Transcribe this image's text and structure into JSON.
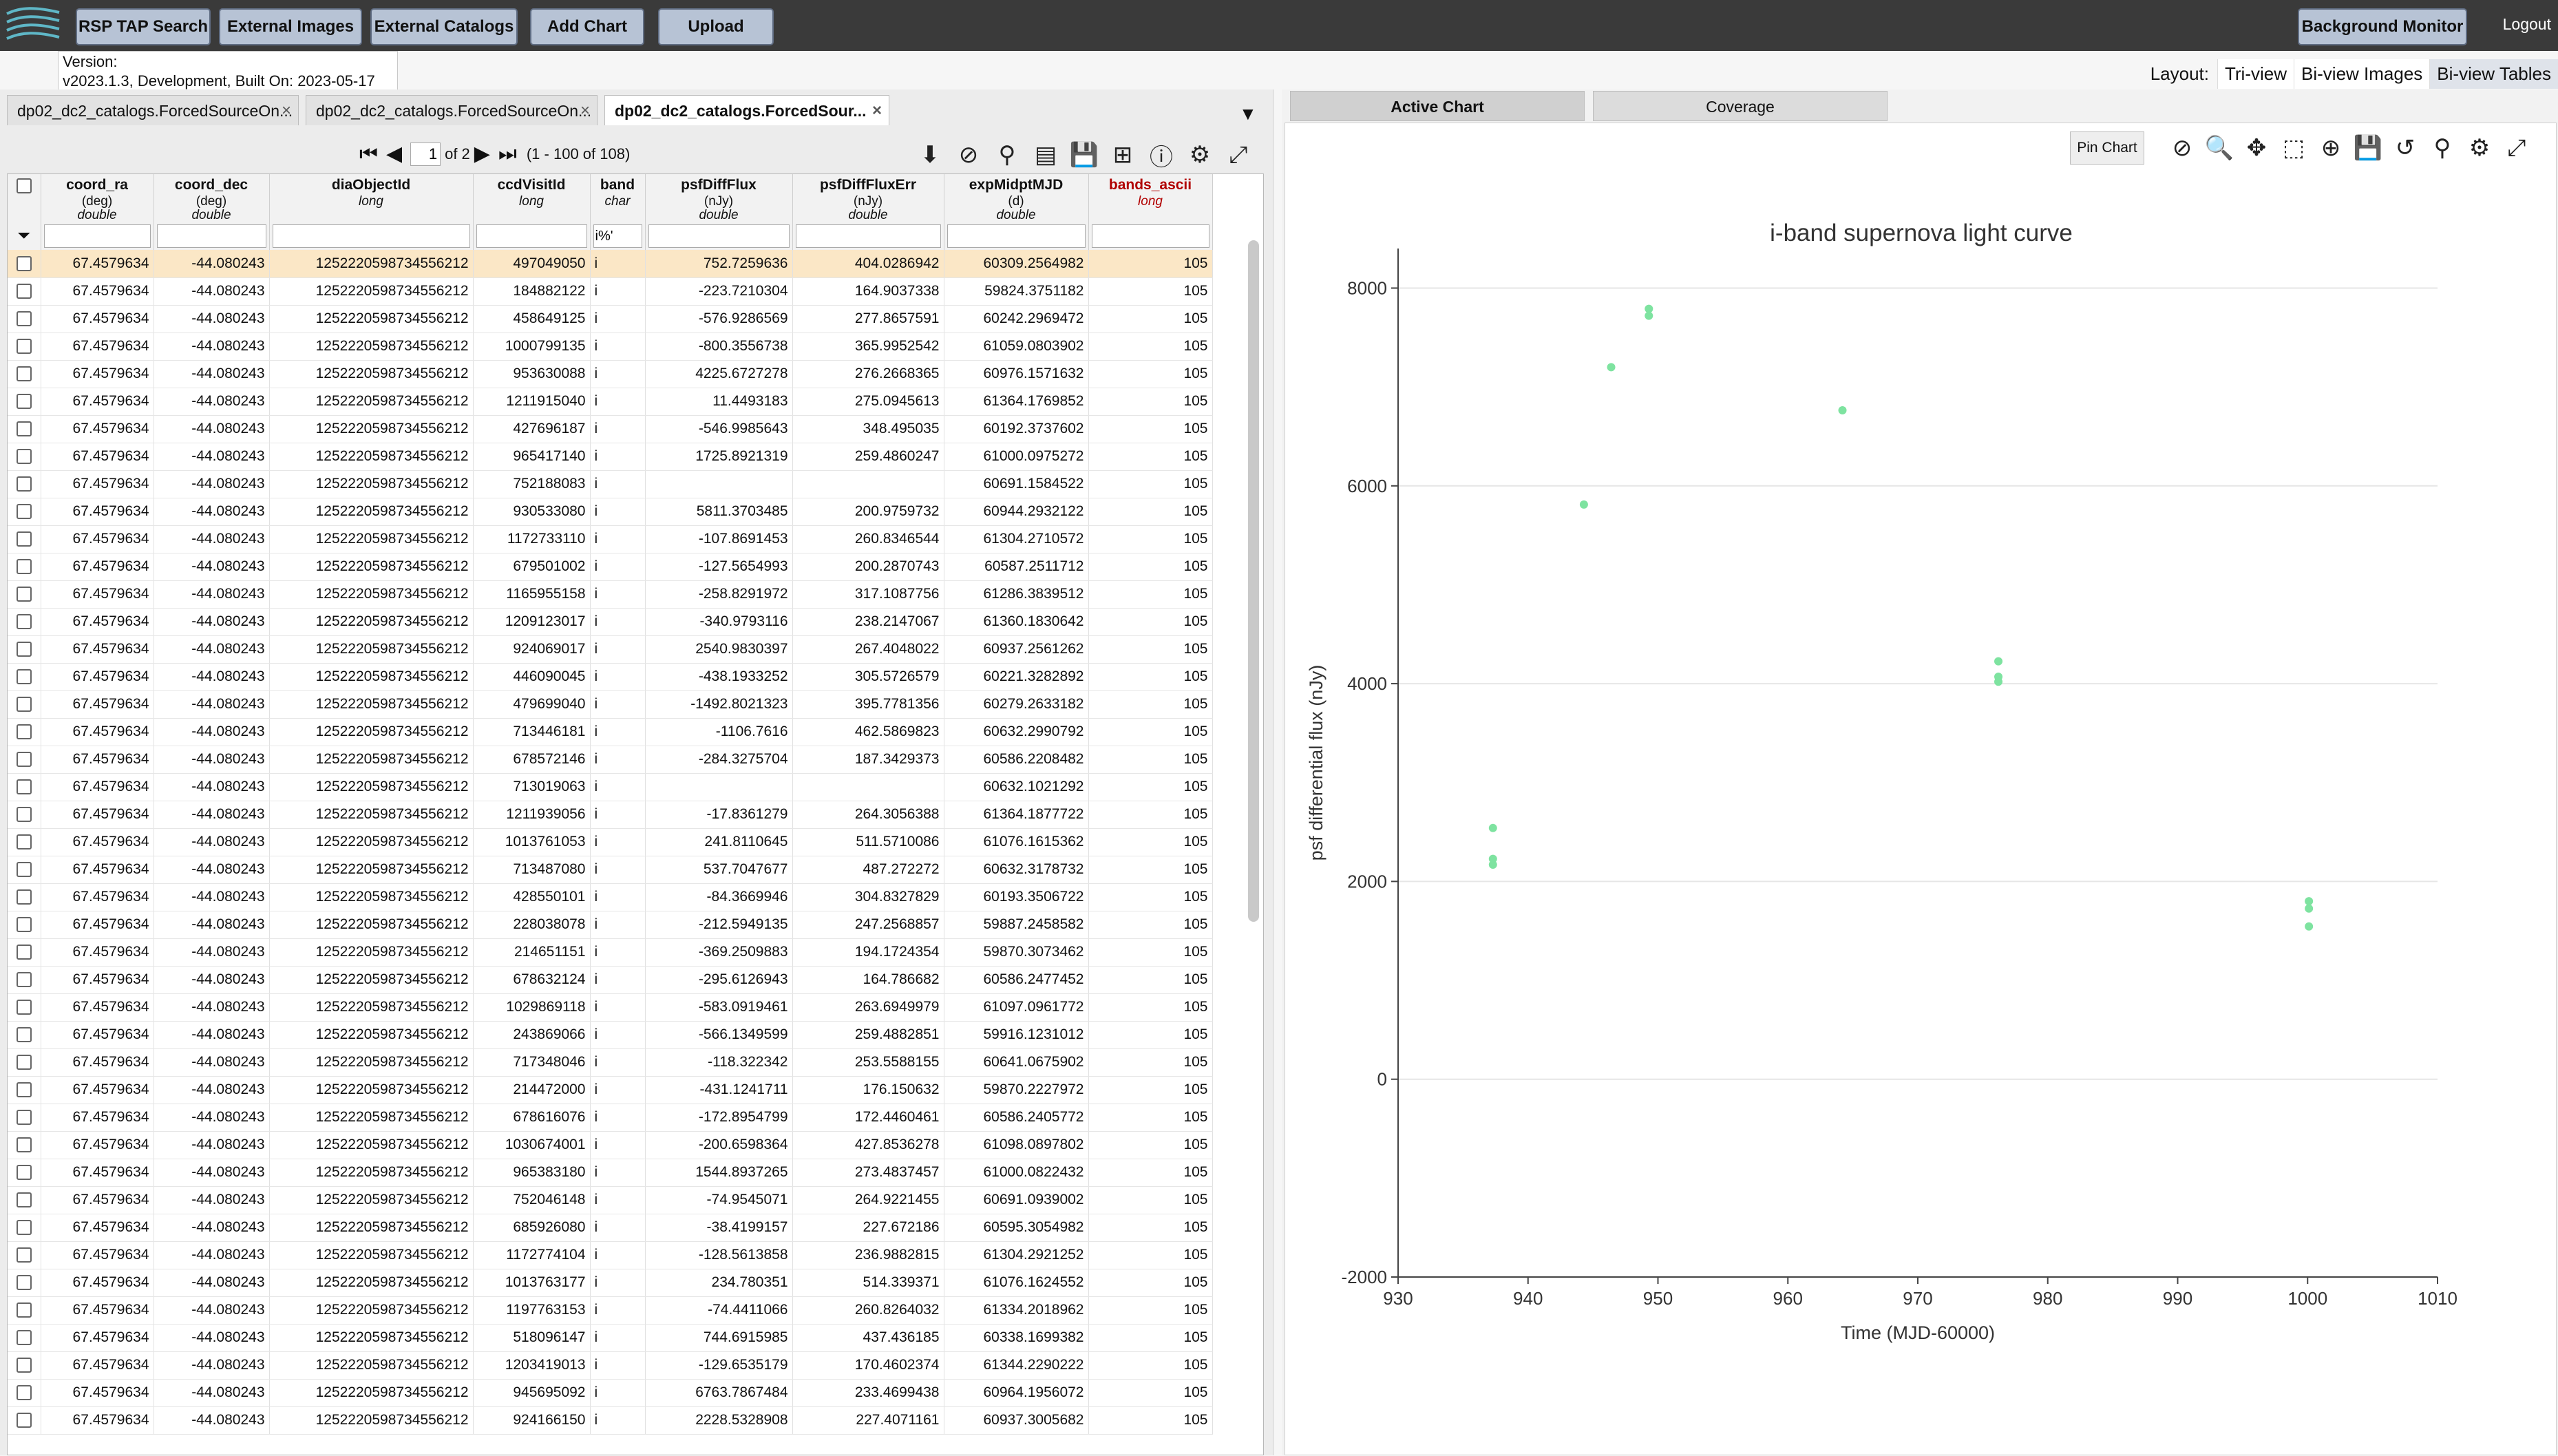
{
  "topbar": {
    "buttons": [
      "RSP TAP Search",
      "External Images",
      "External Catalogs",
      "Add Chart",
      "Upload"
    ],
    "background_monitor": "Background Monitor",
    "logout": "Logout"
  },
  "version": {
    "line1": "Version:",
    "line2": "v2023.1.3, Development, Built On: 2023-05-17"
  },
  "layout": {
    "label": "Layout:",
    "options": [
      "Tri-view",
      "Bi-view Images",
      "Bi-view Tables"
    ],
    "selected": "Bi-view Tables"
  },
  "tabs": [
    {
      "label": "dp02_dc2_catalogs.ForcedSourceOn...",
      "close": "×"
    },
    {
      "label": "dp02_dc2_catalogs.ForcedSourceOn...",
      "close": "×"
    },
    {
      "label": "dp02_dc2_catalogs.ForcedSour...",
      "close": "×"
    }
  ],
  "pager": {
    "page": "1",
    "of": "of 2",
    "range": "(1 - 100 of 108)"
  },
  "table": {
    "columns": [
      {
        "name": "coord_ra",
        "unit": "(deg)",
        "type": "double"
      },
      {
        "name": "coord_dec",
        "unit": "(deg)",
        "type": "double"
      },
      {
        "name": "diaObjectId",
        "unit": "",
        "type": "long"
      },
      {
        "name": "ccdVisitId",
        "unit": "",
        "type": "long"
      },
      {
        "name": "band",
        "unit": "",
        "type": "char"
      },
      {
        "name": "psfDiffFlux",
        "unit": "(nJy)",
        "type": "double"
      },
      {
        "name": "psfDiffFluxErr",
        "unit": "(nJy)",
        "type": "double"
      },
      {
        "name": "expMidptMJD",
        "unit": "(d)",
        "type": "double"
      },
      {
        "name": "bands_ascii",
        "unit": "",
        "type": "long"
      }
    ],
    "band_filter": "i%'",
    "rows": [
      [
        "67.4579634",
        "-44.080243",
        "1252220598734556212",
        "497049050",
        "i",
        "752.7259636",
        "404.0286942",
        "60309.2564982",
        "105"
      ],
      [
        "67.4579634",
        "-44.080243",
        "1252220598734556212",
        "184882122",
        "i",
        "-223.7210304",
        "164.9037338",
        "59824.3751182",
        "105"
      ],
      [
        "67.4579634",
        "-44.080243",
        "1252220598734556212",
        "458649125",
        "i",
        "-576.9286569",
        "277.8657591",
        "60242.2969472",
        "105"
      ],
      [
        "67.4579634",
        "-44.080243",
        "1252220598734556212",
        "1000799135",
        "i",
        "-800.3556738",
        "365.9952542",
        "61059.0803902",
        "105"
      ],
      [
        "67.4579634",
        "-44.080243",
        "1252220598734556212",
        "953630088",
        "i",
        "4225.6727278",
        "276.2668365",
        "60976.1571632",
        "105"
      ],
      [
        "67.4579634",
        "-44.080243",
        "1252220598734556212",
        "1211915040",
        "i",
        "11.4493183",
        "275.0945613",
        "61364.1769852",
        "105"
      ],
      [
        "67.4579634",
        "-44.080243",
        "1252220598734556212",
        "427696187",
        "i",
        "-546.9985643",
        "348.495035",
        "60192.3737602",
        "105"
      ],
      [
        "67.4579634",
        "-44.080243",
        "1252220598734556212",
        "965417140",
        "i",
        "1725.8921319",
        "259.4860247",
        "61000.0975272",
        "105"
      ],
      [
        "67.4579634",
        "-44.080243",
        "1252220598734556212",
        "752188083",
        "i",
        "",
        "",
        "60691.1584522",
        "105"
      ],
      [
        "67.4579634",
        "-44.080243",
        "1252220598734556212",
        "930533080",
        "i",
        "5811.3703485",
        "200.9759732",
        "60944.2932122",
        "105"
      ],
      [
        "67.4579634",
        "-44.080243",
        "1252220598734556212",
        "1172733110",
        "i",
        "-107.8691453",
        "260.8346544",
        "61304.2710572",
        "105"
      ],
      [
        "67.4579634",
        "-44.080243",
        "1252220598734556212",
        "679501002",
        "i",
        "-127.5654993",
        "200.2870743",
        "60587.2511712",
        "105"
      ],
      [
        "67.4579634",
        "-44.080243",
        "1252220598734556212",
        "1165955158",
        "i",
        "-258.8291972",
        "317.1087756",
        "61286.3839512",
        "105"
      ],
      [
        "67.4579634",
        "-44.080243",
        "1252220598734556212",
        "1209123017",
        "i",
        "-340.9793116",
        "238.2147067",
        "61360.1830642",
        "105"
      ],
      [
        "67.4579634",
        "-44.080243",
        "1252220598734556212",
        "924069017",
        "i",
        "2540.9830397",
        "267.4048022",
        "60937.2561262",
        "105"
      ],
      [
        "67.4579634",
        "-44.080243",
        "1252220598734556212",
        "446090045",
        "i",
        "-438.1933252",
        "305.5726579",
        "60221.3282892",
        "105"
      ],
      [
        "67.4579634",
        "-44.080243",
        "1252220598734556212",
        "479699040",
        "i",
        "-1492.8021323",
        "395.7781356",
        "60279.2633182",
        "105"
      ],
      [
        "67.4579634",
        "-44.080243",
        "1252220598734556212",
        "713446181",
        "i",
        "-1106.7616",
        "462.5869823",
        "60632.2990792",
        "105"
      ],
      [
        "67.4579634",
        "-44.080243",
        "1252220598734556212",
        "678572146",
        "i",
        "-284.3275704",
        "187.3429373",
        "60586.2208482",
        "105"
      ],
      [
        "67.4579634",
        "-44.080243",
        "1252220598734556212",
        "713019063",
        "i",
        "",
        "",
        "60632.1021292",
        "105"
      ],
      [
        "67.4579634",
        "-44.080243",
        "1252220598734556212",
        "1211939056",
        "i",
        "-17.8361279",
        "264.3056388",
        "61364.1877722",
        "105"
      ],
      [
        "67.4579634",
        "-44.080243",
        "1252220598734556212",
        "1013761053",
        "i",
        "241.8110645",
        "511.5710086",
        "61076.1615362",
        "105"
      ],
      [
        "67.4579634",
        "-44.080243",
        "1252220598734556212",
        "713487080",
        "i",
        "537.7047677",
        "487.272272",
        "60632.3178732",
        "105"
      ],
      [
        "67.4579634",
        "-44.080243",
        "1252220598734556212",
        "428550101",
        "i",
        "-84.3669946",
        "304.8327829",
        "60193.3506722",
        "105"
      ],
      [
        "67.4579634",
        "-44.080243",
        "1252220598734556212",
        "228038078",
        "i",
        "-212.5949135",
        "247.2568857",
        "59887.2458582",
        "105"
      ],
      [
        "67.4579634",
        "-44.080243",
        "1252220598734556212",
        "214651151",
        "i",
        "-369.2509883",
        "194.1724354",
        "59870.3073462",
        "105"
      ],
      [
        "67.4579634",
        "-44.080243",
        "1252220598734556212",
        "678632124",
        "i",
        "-295.6126943",
        "164.786682",
        "60586.2477452",
        "105"
      ],
      [
        "67.4579634",
        "-44.080243",
        "1252220598734556212",
        "1029869118",
        "i",
        "-583.0919461",
        "263.6949979",
        "61097.0961772",
        "105"
      ],
      [
        "67.4579634",
        "-44.080243",
        "1252220598734556212",
        "243869066",
        "i",
        "-566.1349599",
        "259.4882851",
        "59916.1231012",
        "105"
      ],
      [
        "67.4579634",
        "-44.080243",
        "1252220598734556212",
        "717348046",
        "i",
        "-118.322342",
        "253.5588155",
        "60641.0675902",
        "105"
      ],
      [
        "67.4579634",
        "-44.080243",
        "1252220598734556212",
        "214472000",
        "i",
        "-431.1241711",
        "176.150632",
        "59870.2227972",
        "105"
      ],
      [
        "67.4579634",
        "-44.080243",
        "1252220598734556212",
        "678616076",
        "i",
        "-172.8954799",
        "172.4460461",
        "60586.2405772",
        "105"
      ],
      [
        "67.4579634",
        "-44.080243",
        "1252220598734556212",
        "1030674001",
        "i",
        "-200.6598364",
        "427.8536278",
        "61098.0897802",
        "105"
      ],
      [
        "67.4579634",
        "-44.080243",
        "1252220598734556212",
        "965383180",
        "i",
        "1544.8937265",
        "273.4837457",
        "61000.0822432",
        "105"
      ],
      [
        "67.4579634",
        "-44.080243",
        "1252220598734556212",
        "752046148",
        "i",
        "-74.9545071",
        "264.9221455",
        "60691.0939002",
        "105"
      ],
      [
        "67.4579634",
        "-44.080243",
        "1252220598734556212",
        "685926080",
        "i",
        "-38.4199157",
        "227.672186",
        "60595.3054982",
        "105"
      ],
      [
        "67.4579634",
        "-44.080243",
        "1252220598734556212",
        "1172774104",
        "i",
        "-128.5613858",
        "236.9882815",
        "61304.2921252",
        "105"
      ],
      [
        "67.4579634",
        "-44.080243",
        "1252220598734556212",
        "1013763177",
        "i",
        "234.780351",
        "514.339371",
        "61076.1624552",
        "105"
      ],
      [
        "67.4579634",
        "-44.080243",
        "1252220598734556212",
        "1197763153",
        "i",
        "-74.4411066",
        "260.8264032",
        "61334.2018962",
        "105"
      ],
      [
        "67.4579634",
        "-44.080243",
        "1252220598734556212",
        "518096147",
        "i",
        "744.6915985",
        "437.436185",
        "60338.1699382",
        "105"
      ],
      [
        "67.4579634",
        "-44.080243",
        "1252220598734556212",
        "1203419013",
        "i",
        "-129.6535179",
        "170.4602374",
        "61344.2290222",
        "105"
      ],
      [
        "67.4579634",
        "-44.080243",
        "1252220598734556212",
        "945695092",
        "i",
        "6763.7867484",
        "233.4699438",
        "60964.1956072",
        "105"
      ],
      [
        "67.4579634",
        "-44.080243",
        "1252220598734556212",
        "924166150",
        "i",
        "2228.5328908",
        "227.4071161",
        "60937.3005682",
        "105"
      ]
    ]
  },
  "chart_tabs": {
    "active": "Active Chart",
    "other": "Coverage"
  },
  "pin_chart": "Pin Chart",
  "chart_data": {
    "type": "scatter",
    "title": "i-band supernova light curve",
    "xlabel": "Time (MJD-60000)",
    "ylabel": "psf differential flux (nJy)",
    "xlim": [
      930,
      1010
    ],
    "ylim": [
      -2000,
      8400
    ],
    "xticks": [
      930,
      940,
      950,
      960,
      970,
      980,
      990,
      1000,
      1010
    ],
    "yticks": [
      -2000,
      0,
      2000,
      4000,
      6000,
      8000
    ],
    "grid": true,
    "marker_color": "#7ee3a0",
    "points": [
      {
        "x": 937.3,
        "y": 2540
      },
      {
        "x": 937.3,
        "y": 2228
      },
      {
        "x": 937.3,
        "y": 2170
      },
      {
        "x": 944.3,
        "y": 5811
      },
      {
        "x": 946.4,
        "y": 7200
      },
      {
        "x": 949.3,
        "y": 7790
      },
      {
        "x": 949.3,
        "y": 7720
      },
      {
        "x": 964.2,
        "y": 6764
      },
      {
        "x": 976.2,
        "y": 4226
      },
      {
        "x": 976.2,
        "y": 4070
      },
      {
        "x": 976.2,
        "y": 4020
      },
      {
        "x": 1000.1,
        "y": 1800
      },
      {
        "x": 1000.1,
        "y": 1726
      },
      {
        "x": 1000.1,
        "y": 1545
      }
    ]
  }
}
